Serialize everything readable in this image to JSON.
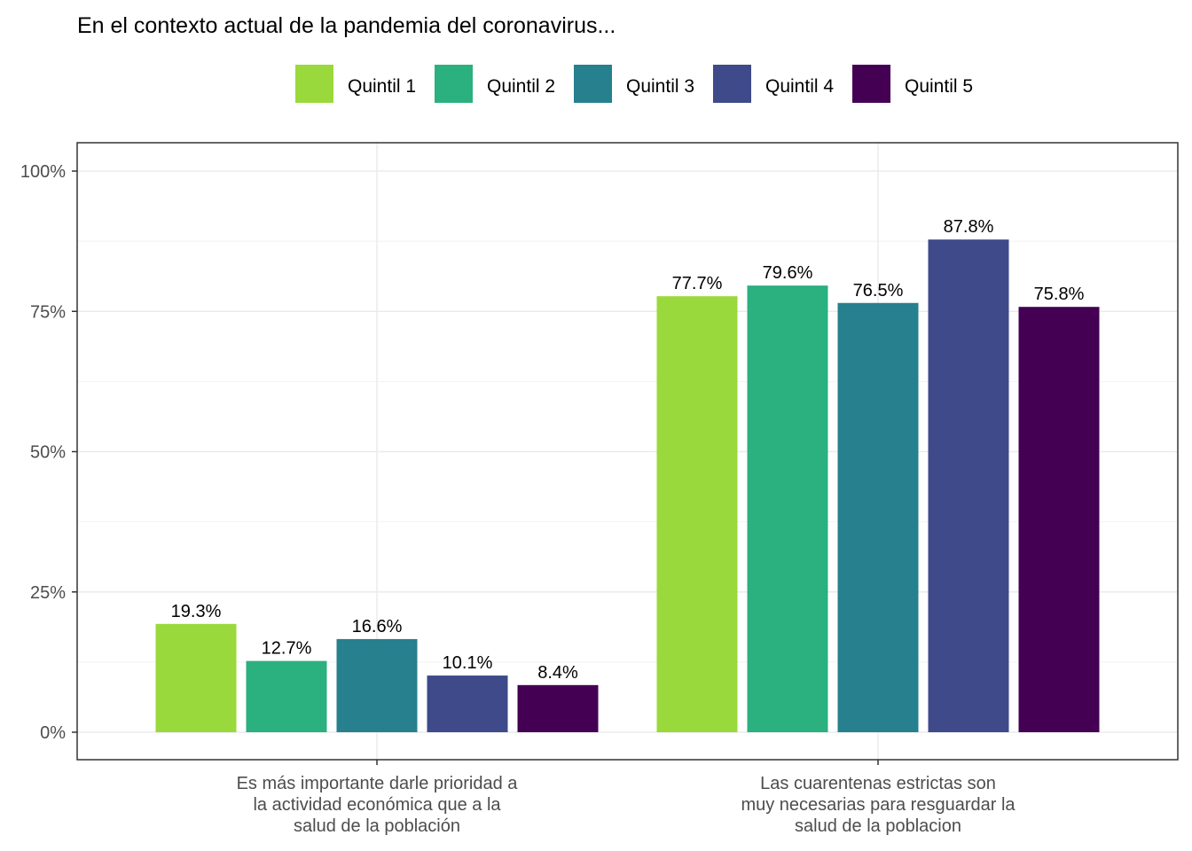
{
  "chart_data": {
    "type": "bar",
    "title": "En el contexto actual de la pandemia del coronavirus...",
    "xlabel": "",
    "ylabel": "",
    "categories": [
      [
        "Es más importante darle prioridad a",
        "la actividad económica que a la",
        "salud de la población"
      ],
      [
        "Las cuarentenas estrictas son",
        "muy necesarias para resguardar la",
        "salud de la poblacion"
      ]
    ],
    "series": [
      {
        "name": "Quintil 1",
        "color": "#9ad93b",
        "values": [
          19.3,
          77.7
        ],
        "labels": [
          "19.3%",
          "77.7%"
        ]
      },
      {
        "name": "Quintil 2",
        "color": "#2bb07f",
        "values": [
          12.7,
          79.6
        ],
        "labels": [
          "12.7%",
          "79.6%"
        ]
      },
      {
        "name": "Quintil 3",
        "color": "#26808e",
        "values": [
          16.6,
          76.5
        ],
        "labels": [
          "16.6%",
          "76.5%"
        ]
      },
      {
        "name": "Quintil 4",
        "color": "#3e4a89",
        "values": [
          10.1,
          87.8
        ],
        "labels": [
          "10.1%",
          "87.8%"
        ]
      },
      {
        "name": "Quintil 5",
        "color": "#440154",
        "values": [
          8.4,
          75.8
        ],
        "labels": [
          "8.4%",
          "75.8%"
        ]
      }
    ],
    "ylim": [
      0,
      100
    ],
    "y_ticks": [
      {
        "value": 0,
        "label": "0%"
      },
      {
        "value": 25,
        "label": "25%"
      },
      {
        "value": 50,
        "label": "50%"
      },
      {
        "value": 75,
        "label": "75%"
      },
      {
        "value": 100,
        "label": "100%"
      }
    ],
    "grid": true,
    "legend_position": "top"
  }
}
